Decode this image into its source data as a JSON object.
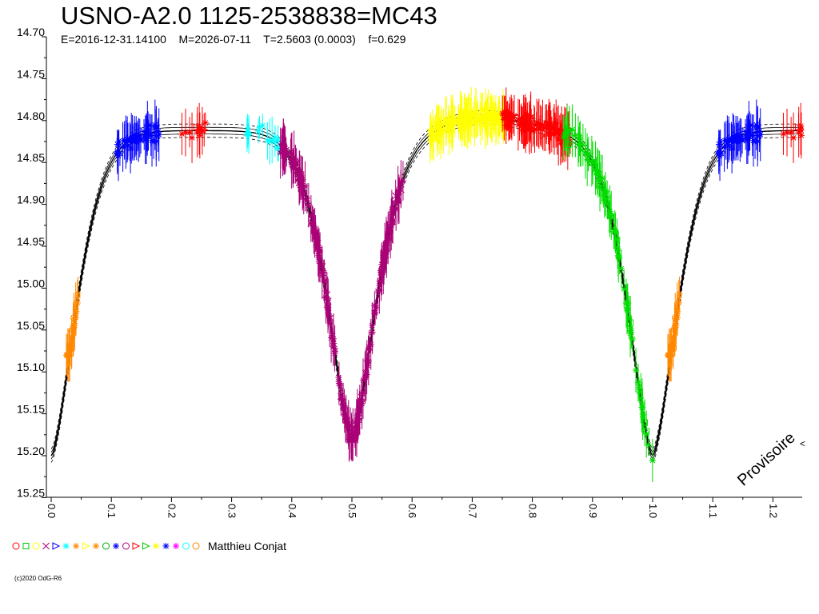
{
  "chart_data": {
    "type": "scatter",
    "title": "USNO-A2.0 1125-2538838=MC43",
    "subtitle": "E=2016-12-31.14100    M=2026-07-11    T=2.5603 (0.0003)    f=0.629",
    "xlabel": "",
    "ylabel": "",
    "xlim": [
      0.0,
      1.25
    ],
    "ylim": [
      15.25,
      14.7
    ],
    "y_inverted": true,
    "x_ticks": [
      "0.0",
      "0.1",
      "0.2",
      "0.3",
      "0.4",
      "0.5",
      "0.6",
      "0.7",
      "0.8",
      "0.9",
      "1.0",
      "1.1",
      "1.2"
    ],
    "y_ticks": [
      "14.70",
      "14.75",
      "14.80",
      "14.85",
      "14.90",
      "14.95",
      "15.00",
      "15.05",
      "15.10",
      "15.15",
      "15.20",
      "15.25"
    ],
    "grid": false,
    "model": {
      "baseline_mag": 14.812,
      "primary_min_phase": 1.0,
      "primary_min_mag": 15.2,
      "secondary_min_phase": 0.5,
      "secondary_min_mag": 15.18,
      "envelope_offsets": [
        -0.004,
        0.004,
        -0.008,
        0.008
      ]
    },
    "series": [
      {
        "observer": "Matthieu Conjat",
        "color": "#0000FF",
        "marker": "star",
        "phase": [
          0.11,
          0.18
        ],
        "mag": [
          14.8,
          14.85
        ]
      },
      {
        "observer": "Matthieu Conjat",
        "color": "#FF0000",
        "marker": "triangle-right",
        "phase": [
          0.215,
          0.26
        ],
        "mag": [
          14.79,
          14.81
        ]
      },
      {
        "observer": "Matthieu Conjat",
        "color": "#00FFFF",
        "marker": "star",
        "phase": [
          0.325,
          0.38
        ],
        "mag": [
          14.81,
          14.84
        ]
      },
      {
        "observer": "Matthieu Conjat",
        "color": "#AA0077",
        "marker": "x-cross",
        "phase": [
          0.38,
          0.585
        ],
        "mag": [
          14.83,
          15.18
        ]
      },
      {
        "observer": "Matthieu Conjat",
        "color": "#FFFF00",
        "marker": "x-cross",
        "phase": [
          0.63,
          0.755
        ],
        "mag": [
          14.78,
          14.82
        ]
      },
      {
        "observer": "Matthieu Conjat",
        "color": "#FF0000",
        "marker": "x-cross",
        "phase": [
          0.75,
          0.865
        ],
        "mag": [
          14.79,
          14.83
        ]
      },
      {
        "observer": "Matthieu Conjat",
        "color": "#00DD00",
        "marker": "square",
        "phase": [
          0.85,
          1.0
        ],
        "mag": [
          14.78,
          15.2
        ]
      },
      {
        "observer": "Matthieu Conjat",
        "color": "#FF8800",
        "marker": "circle",
        "phase": [
          0.025,
          0.045
        ],
        "mag": [
          14.98,
          15.06
        ]
      }
    ],
    "legend": {
      "name": "Matthieu Conjat",
      "placement": "bottom-left"
    }
  },
  "watermark": "Provisoire",
  "copyright": "(c)2020 OdG-R6"
}
